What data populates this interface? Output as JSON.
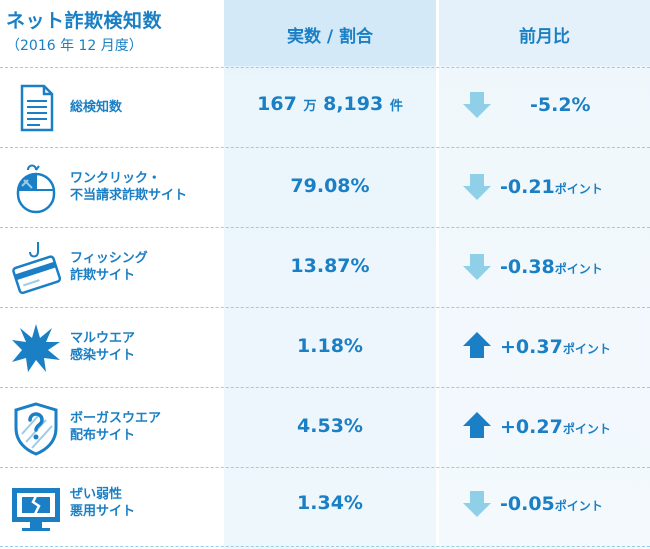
{
  "header": {
    "title": "ネット詐欺検知数",
    "subtitle": "（2016 年 12 月度）",
    "col_value": "実数 / 割合",
    "col_change": "前月比"
  },
  "chart_data": {
    "type": "table",
    "columns": [
      "",
      "実数 / 割合",
      "前月比"
    ],
    "rows": [
      {
        "icon": "document-icon",
        "label_lines": [
          "総検知数"
        ],
        "value_num": "167",
        "value_unit1": "万",
        "value_num2": "8,193",
        "value_unit2": "件",
        "direction": "down",
        "change": "-5.2%",
        "change_unit": ""
      },
      {
        "icon": "mouse-icon",
        "label_lines": [
          "ワンクリック・",
          "不当請求詐欺サイト"
        ],
        "value_num": "79.08%",
        "direction": "down",
        "change": "-0.21",
        "change_unit": "ポイント"
      },
      {
        "icon": "card-hook-icon",
        "label_lines": [
          "フィッシング",
          "詐欺サイト"
        ],
        "value_num": "13.87%",
        "direction": "down",
        "change": "-0.38",
        "change_unit": "ポイント"
      },
      {
        "icon": "burst-icon",
        "label_lines": [
          "マルウエア",
          "感染サイト"
        ],
        "value_num": "1.18%",
        "direction": "up",
        "change": "+0.37",
        "change_unit": "ポイント"
      },
      {
        "icon": "shield-question-icon",
        "label_lines": [
          "ボーガスウエア",
          "配布サイト"
        ],
        "value_num": "4.53%",
        "direction": "up",
        "change": "+0.27",
        "change_unit": "ポイント"
      },
      {
        "icon": "broken-monitor-icon",
        "label_lines": [
          "ぜい弱性",
          "悪用サイト"
        ],
        "value_num": "1.34%",
        "direction": "down",
        "change": "-0.05",
        "change_unit": "ポイント"
      }
    ]
  },
  "colors": {
    "text": "#1a7fc4",
    "arrow_down": "#8fd0e8",
    "arrow_up": "#1a7fc4",
    "value_column_bg": "#d4e9f7"
  }
}
